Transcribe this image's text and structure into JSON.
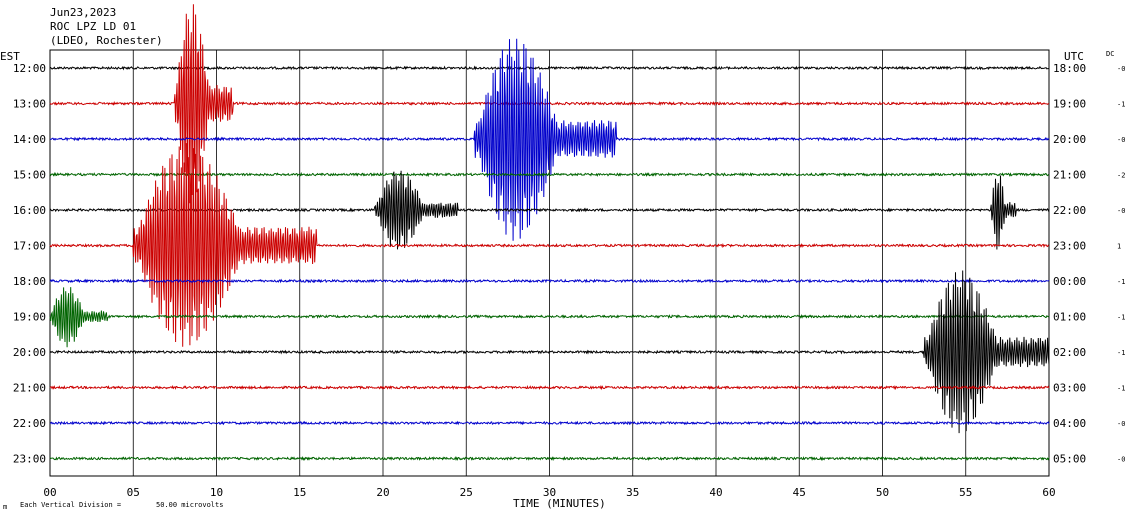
{
  "header": {
    "date": "Jun23,2023",
    "station": "ROC LPZ LD 01",
    "network": "(LDEO, Rochester)",
    "left_zone": "EST",
    "right_zone": "UTC",
    "dc_label": "DC"
  },
  "footer": {
    "scale_prefix": "Each Vertical Division =",
    "scale_value": "50.00 microvolts",
    "corner_mark": "m"
  },
  "chart_data": {
    "type": "line",
    "title": "",
    "xlabel": "TIME (MINUTES)",
    "ylabel": "",
    "xlim": [
      0,
      60
    ],
    "x_ticks": [
      "00",
      "05",
      "10",
      "15",
      "20",
      "25",
      "30",
      "35",
      "40",
      "45",
      "50",
      "55",
      "60"
    ],
    "grid": true,
    "colors": [
      "#000000",
      "#cc0000",
      "#0000cc",
      "#006400"
    ],
    "rows": [
      {
        "est": "12:00",
        "utc": "18:00",
        "dc": "-0",
        "color": "#000000"
      },
      {
        "est": "13:00",
        "utc": "19:00",
        "dc": "-1",
        "color": "#cc0000"
      },
      {
        "est": "14:00",
        "utc": "20:00",
        "dc": "-0",
        "color": "#0000cc"
      },
      {
        "est": "15:00",
        "utc": "21:00",
        "dc": "-2",
        "color": "#006400"
      },
      {
        "est": "16:00",
        "utc": "22:00",
        "dc": "-0",
        "color": "#000000"
      },
      {
        "est": "17:00",
        "utc": "23:00",
        "dc": "1",
        "color": "#cc0000"
      },
      {
        "est": "18:00",
        "utc": "00:00",
        "dc": "-1",
        "color": "#0000cc"
      },
      {
        "est": "19:00",
        "utc": "01:00",
        "dc": "-1",
        "color": "#006400"
      },
      {
        "est": "20:00",
        "utc": "02:00",
        "dc": "-1",
        "color": "#000000"
      },
      {
        "est": "21:00",
        "utc": "03:00",
        "dc": "-1",
        "color": "#cc0000"
      },
      {
        "est": "22:00",
        "utc": "04:00",
        "dc": "-0",
        "color": "#0000cc"
      },
      {
        "est": "23:00",
        "utc": "05:00",
        "dc": "-0",
        "color": "#006400"
      }
    ],
    "events": [
      {
        "row": 1,
        "start_min": 7.5,
        "end_min": 11,
        "amp": 1,
        "description": "large clipped wave packet"
      },
      {
        "row": 5,
        "start_min": 5,
        "end_min": 16,
        "amp": 1
      },
      {
        "row": 2,
        "start_min": 25.5,
        "end_min": 34,
        "amp": 1
      },
      {
        "row": 4,
        "start_min": 19.5,
        "end_min": 24.5,
        "amp": 0.4
      },
      {
        "row": 4,
        "start_min": 56.5,
        "end_min": 58,
        "amp": 0.4
      },
      {
        "row": 8,
        "start_min": 52.5,
        "end_min": 60,
        "amp": 0.8
      },
      {
        "row": 7,
        "start_min": 0,
        "end_min": 3.5,
        "amp": 0.3
      }
    ]
  }
}
